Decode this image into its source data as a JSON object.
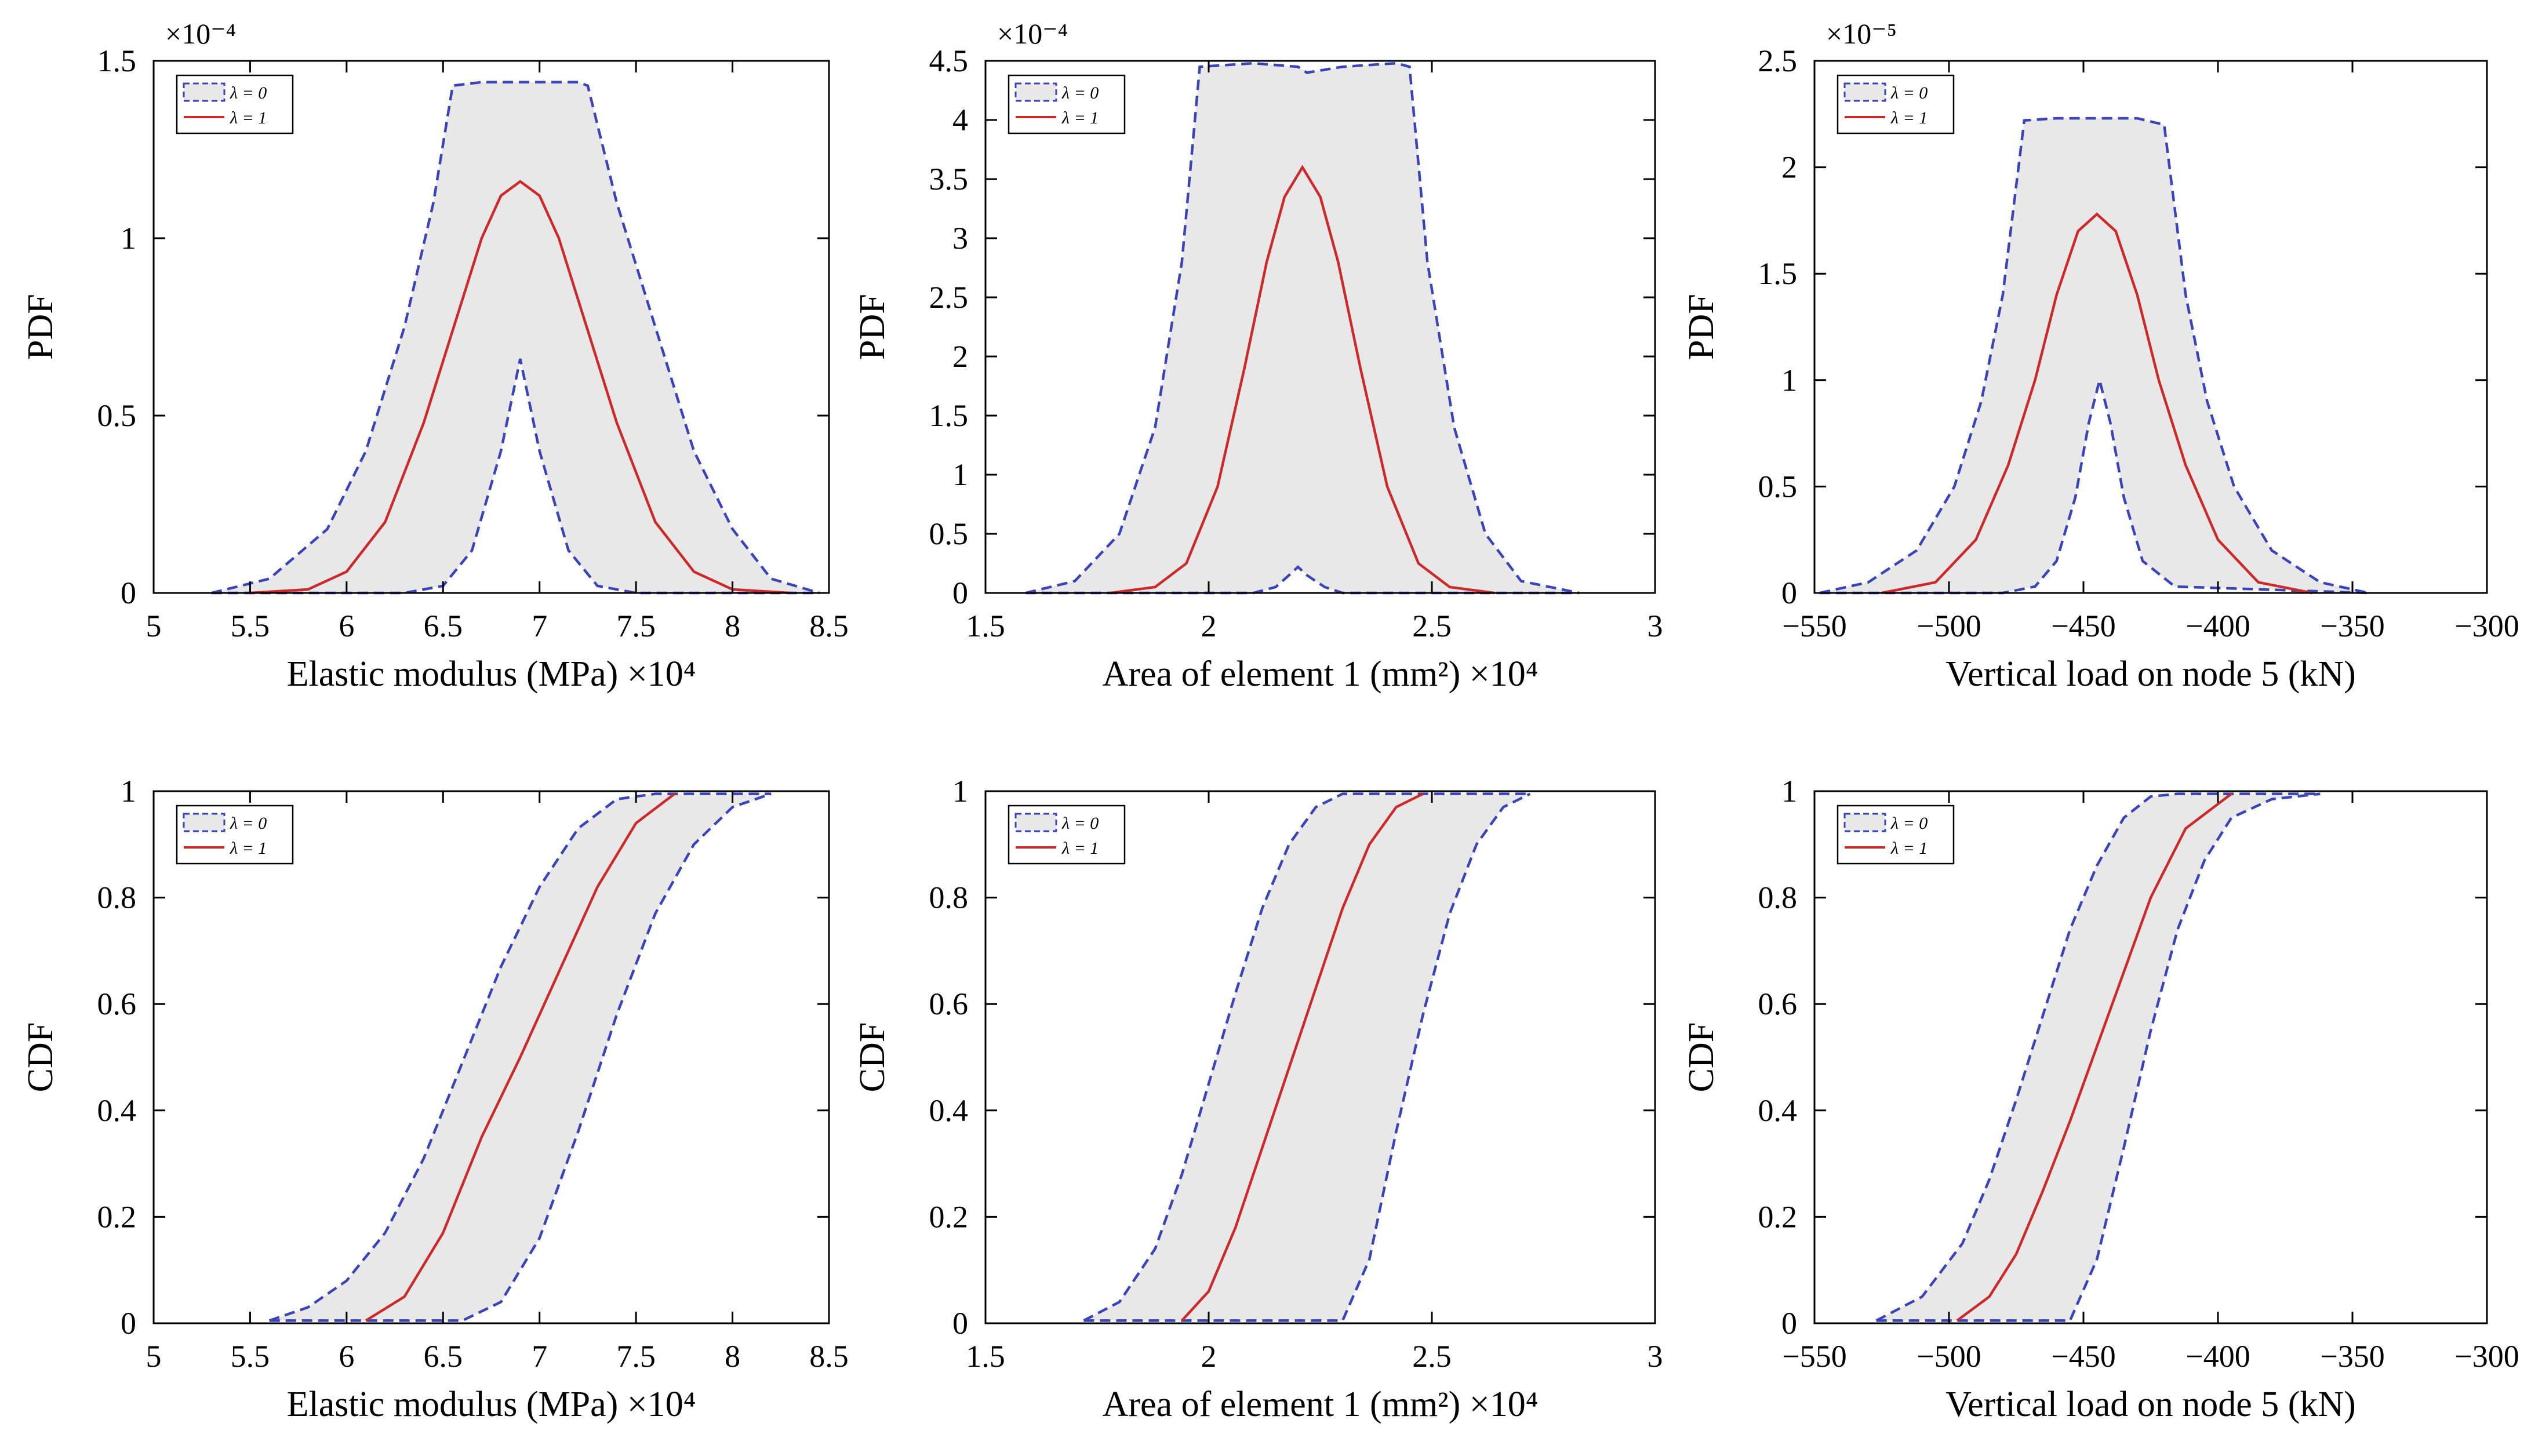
{
  "figure": {
    "legend_labels": [
      "λ = 0",
      "λ = 1"
    ],
    "colors": {
      "lambda0": "#3a44b8",
      "lambda1": "#cc2a2a",
      "band_fill": "#e8e8e8",
      "axes": "#000000"
    }
  },
  "chart_data": [
    {
      "type": "area",
      "title": "",
      "xlabel": "Elastic modulus (MPa) ×10⁴",
      "ylabel": "PDF",
      "y_exponent": "×10⁻⁴",
      "xlim": [
        5,
        8.5
      ],
      "ylim": [
        0,
        1.5
      ],
      "xticks": [
        5,
        5.5,
        6,
        6.5,
        7,
        7.5,
        8,
        8.5
      ],
      "xtick_labels": [
        "5",
        "5.5",
        "6",
        "6.5",
        "7",
        "7.5",
        "8",
        "8.5"
      ],
      "yticks": [
        0,
        0.5,
        1,
        1.5
      ],
      "ytick_labels": [
        "0",
        "0.5",
        "1",
        "1.5"
      ],
      "legend": [
        "λ = 0",
        "λ = 1"
      ],
      "legend_position": "top-left",
      "series": [
        {
          "name": "λ = 0 upper",
          "x": [
            5.3,
            5.6,
            5.9,
            6.1,
            6.3,
            6.45,
            6.55,
            6.7,
            7.0,
            7.2,
            7.25,
            7.4,
            7.6,
            7.8,
            8.0,
            8.2,
            8.45
          ],
          "values": [
            0.0,
            0.04,
            0.18,
            0.4,
            0.75,
            1.1,
            1.43,
            1.44,
            1.44,
            1.44,
            1.43,
            1.1,
            0.75,
            0.4,
            0.18,
            0.04,
            0.0
          ]
        },
        {
          "name": "λ = 0 lower",
          "x": [
            5.3,
            6.0,
            6.3,
            6.5,
            6.65,
            6.8,
            6.9,
            7.0,
            7.15,
            7.3,
            7.5,
            8.45
          ],
          "values": [
            0.0,
            0.0,
            0.0,
            0.02,
            0.12,
            0.4,
            0.66,
            0.4,
            0.12,
            0.02,
            0.0,
            0.0
          ]
        },
        {
          "name": "λ = 1",
          "x": [
            5.5,
            5.8,
            6.0,
            6.2,
            6.4,
            6.55,
            6.7,
            6.8,
            6.9,
            7.0,
            7.1,
            7.25,
            7.4,
            7.6,
            7.8,
            8.0,
            8.3
          ],
          "values": [
            0.0,
            0.01,
            0.06,
            0.2,
            0.48,
            0.74,
            1.0,
            1.12,
            1.16,
            1.12,
            1.0,
            0.74,
            0.48,
            0.2,
            0.06,
            0.01,
            0.0
          ]
        }
      ]
    },
    {
      "type": "area",
      "title": "",
      "xlabel": "Area of element 1 (mm²) ×10⁴",
      "ylabel": "PDF",
      "y_exponent": "×10⁻⁴",
      "xlim": [
        1.5,
        3
      ],
      "ylim": [
        0,
        4.5
      ],
      "xticks": [
        1.5,
        2,
        2.5,
        3
      ],
      "xtick_labels": [
        "1.5",
        "2",
        "2.5",
        "3"
      ],
      "yticks": [
        0,
        0.5,
        1,
        1.5,
        2,
        2.5,
        3,
        3.5,
        4,
        4.5
      ],
      "ytick_labels": [
        "0",
        "0.5",
        "1",
        "1.5",
        "2",
        "2.5",
        "3",
        "3.5",
        "4",
        "4.5"
      ],
      "legend": [
        "λ = 0",
        "λ = 1"
      ],
      "legend_position": "top-left",
      "series": [
        {
          "name": "λ = 0 upper",
          "x": [
            1.59,
            1.7,
            1.8,
            1.88,
            1.94,
            1.98,
            2.1,
            2.2,
            2.22,
            2.3,
            2.42,
            2.45,
            2.49,
            2.55,
            2.62,
            2.7,
            2.83
          ],
          "values": [
            0.0,
            0.1,
            0.5,
            1.4,
            2.8,
            4.45,
            4.48,
            4.45,
            4.4,
            4.45,
            4.48,
            4.45,
            2.8,
            1.4,
            0.5,
            0.1,
            0.0
          ]
        },
        {
          "name": "λ = 0 lower",
          "x": [
            1.59,
            2.1,
            2.15,
            2.18,
            2.2,
            2.22,
            2.26,
            2.3,
            2.83
          ],
          "values": [
            0.0,
            0.0,
            0.05,
            0.15,
            0.22,
            0.15,
            0.05,
            0.0,
            0.0
          ]
        },
        {
          "name": "λ = 1",
          "x": [
            1.78,
            1.88,
            1.95,
            2.02,
            2.08,
            2.13,
            2.17,
            2.21,
            2.25,
            2.29,
            2.34,
            2.4,
            2.47,
            2.54,
            2.64
          ],
          "values": [
            0.0,
            0.05,
            0.25,
            0.9,
            1.9,
            2.8,
            3.35,
            3.6,
            3.35,
            2.8,
            1.9,
            0.9,
            0.25,
            0.05,
            0.0
          ]
        }
      ]
    },
    {
      "type": "area",
      "title": "",
      "xlabel": "Vertical load on node 5 (kN)",
      "ylabel": "PDF",
      "y_exponent": "×10⁻⁵",
      "xlim": [
        -550,
        -300
      ],
      "ylim": [
        0,
        2.5
      ],
      "xticks": [
        -550,
        -500,
        -450,
        -400,
        -350,
        -300
      ],
      "xtick_labels": [
        "−550",
        "−500",
        "−450",
        "−400",
        "−350",
        "−300"
      ],
      "yticks": [
        0,
        0.5,
        1,
        1.5,
        2,
        2.5
      ],
      "ytick_labels": [
        "0",
        "0.5",
        "1",
        "1.5",
        "2",
        "2.5"
      ],
      "legend": [
        "λ = 0",
        "λ = 1"
      ],
      "legend_position": "top-left",
      "series": [
        {
          "name": "λ = 0 upper",
          "x": [
            -548,
            -530,
            -512,
            -498,
            -488,
            -480,
            -472,
            -460,
            -445,
            -430,
            -420,
            -412,
            -404,
            -394,
            -380,
            -362,
            -344
          ],
          "values": [
            0.0,
            0.05,
            0.2,
            0.5,
            0.9,
            1.4,
            2.22,
            2.23,
            2.23,
            2.23,
            2.2,
            1.4,
            0.9,
            0.5,
            0.2,
            0.05,
            0.0
          ]
        },
        {
          "name": "λ = 0 lower",
          "x": [
            -548,
            -480,
            -468,
            -460,
            -453,
            -448,
            -444,
            -440,
            -435,
            -428,
            -416,
            -344
          ],
          "values": [
            0.0,
            0.0,
            0.03,
            0.15,
            0.45,
            0.8,
            1.0,
            0.8,
            0.45,
            0.15,
            0.03,
            0.0
          ]
        },
        {
          "name": "λ = 1",
          "x": [
            -525,
            -505,
            -490,
            -478,
            -468,
            -460,
            -452,
            -445,
            -438,
            -430,
            -422,
            -412,
            -400,
            -385,
            -365
          ],
          "values": [
            0.0,
            0.05,
            0.25,
            0.6,
            1.0,
            1.4,
            1.7,
            1.78,
            1.7,
            1.4,
            1.0,
            0.6,
            0.25,
            0.05,
            0.0
          ]
        }
      ]
    },
    {
      "type": "area",
      "title": "",
      "xlabel": "Elastic modulus (MPa) ×10⁴",
      "ylabel": "CDF",
      "y_exponent": "",
      "xlim": [
        5,
        8.5
      ],
      "ylim": [
        0,
        1
      ],
      "xticks": [
        5,
        5.5,
        6,
        6.5,
        7,
        7.5,
        8,
        8.5
      ],
      "xtick_labels": [
        "5",
        "5.5",
        "6",
        "6.5",
        "7",
        "7.5",
        "8",
        "8.5"
      ],
      "yticks": [
        0,
        0.2,
        0.4,
        0.6,
        0.8,
        1
      ],
      "ytick_labels": [
        "0",
        "0.2",
        "0.4",
        "0.6",
        "0.8",
        "1"
      ],
      "legend": [
        "λ = 0",
        "λ = 1"
      ],
      "legend_position": "top-left",
      "series": [
        {
          "name": "λ = 0 upper",
          "x": [
            5.6,
            5.8,
            6.0,
            6.2,
            6.4,
            6.6,
            6.8,
            7.0,
            7.2,
            7.4,
            7.6,
            8.2
          ],
          "values": [
            0.005,
            0.03,
            0.08,
            0.17,
            0.31,
            0.49,
            0.67,
            0.82,
            0.93,
            0.985,
            0.995,
            0.995
          ]
        },
        {
          "name": "λ = 0 lower",
          "x": [
            5.6,
            6.6,
            6.8,
            7.0,
            7.2,
            7.4,
            7.6,
            7.8,
            8.0,
            8.2
          ],
          "values": [
            0.005,
            0.005,
            0.04,
            0.16,
            0.36,
            0.58,
            0.77,
            0.9,
            0.97,
            0.995
          ]
        },
        {
          "name": "λ = 1",
          "x": [
            6.1,
            6.3,
            6.5,
            6.7,
            6.9,
            7.1,
            7.3,
            7.5,
            7.7
          ],
          "values": [
            0.005,
            0.05,
            0.17,
            0.35,
            0.5,
            0.66,
            0.82,
            0.94,
            0.995
          ]
        }
      ]
    },
    {
      "type": "area",
      "title": "",
      "xlabel": "Area of element 1 (mm²) ×10⁴",
      "ylabel": "CDF",
      "y_exponent": "",
      "xlim": [
        1.5,
        3
      ],
      "ylim": [
        0,
        1
      ],
      "xticks": [
        1.5,
        2,
        2.5,
        3
      ],
      "xtick_labels": [
        "1.5",
        "2",
        "2.5",
        "3"
      ],
      "yticks": [
        0,
        0.2,
        0.4,
        0.6,
        0.8,
        1
      ],
      "ytick_labels": [
        "0",
        "0.2",
        "0.4",
        "0.6",
        "0.8",
        "1"
      ],
      "legend": [
        "λ = 0",
        "λ = 1"
      ],
      "legend_position": "top-left",
      "series": [
        {
          "name": "λ = 0 upper",
          "x": [
            1.72,
            1.8,
            1.88,
            1.94,
            2.0,
            2.06,
            2.12,
            2.18,
            2.24,
            2.3,
            2.36,
            2.72
          ],
          "values": [
            0.005,
            0.04,
            0.14,
            0.28,
            0.45,
            0.62,
            0.78,
            0.9,
            0.97,
            0.995,
            0.995,
            0.995
          ]
        },
        {
          "name": "λ = 0 lower",
          "x": [
            1.72,
            2.3,
            2.36,
            2.42,
            2.48,
            2.54,
            2.6,
            2.66,
            2.72
          ],
          "values": [
            0.005,
            0.005,
            0.12,
            0.36,
            0.58,
            0.77,
            0.9,
            0.97,
            0.995
          ]
        },
        {
          "name": "λ = 1",
          "x": [
            1.94,
            2.0,
            2.06,
            2.12,
            2.18,
            2.24,
            2.3,
            2.36,
            2.42,
            2.48
          ],
          "values": [
            0.005,
            0.06,
            0.18,
            0.33,
            0.48,
            0.63,
            0.78,
            0.9,
            0.97,
            0.995
          ]
        }
      ]
    },
    {
      "type": "area",
      "title": "",
      "xlabel": "Vertical load on node 5 (kN)",
      "ylabel": "CDF",
      "y_exponent": "",
      "xlim": [
        -550,
        -300
      ],
      "ylim": [
        0,
        1
      ],
      "xticks": [
        -550,
        -500,
        -450,
        -400,
        -350,
        -300
      ],
      "xtick_labels": [
        "−550",
        "−500",
        "−450",
        "−400",
        "−350",
        "−300"
      ],
      "yticks": [
        0,
        0.2,
        0.4,
        0.6,
        0.8,
        1
      ],
      "ytick_labels": [
        "0",
        "0.2",
        "0.4",
        "0.6",
        "0.8",
        "1"
      ],
      "legend": [
        "λ = 0",
        "λ = 1"
      ],
      "legend_position": "top-left",
      "series": [
        {
          "name": "λ = 0 upper",
          "x": [
            -527,
            -510,
            -495,
            -485,
            -475,
            -465,
            -455,
            -445,
            -435,
            -425,
            -415,
            -362
          ],
          "values": [
            0.005,
            0.05,
            0.15,
            0.27,
            0.42,
            0.58,
            0.74,
            0.86,
            0.95,
            0.99,
            0.995,
            0.995
          ]
        },
        {
          "name": "λ = 0 lower",
          "x": [
            -527,
            -455,
            -445,
            -435,
            -425,
            -415,
            -405,
            -395,
            -380,
            -362
          ],
          "values": [
            0.005,
            0.005,
            0.12,
            0.33,
            0.55,
            0.74,
            0.87,
            0.95,
            0.985,
            0.995
          ]
        },
        {
          "name": "λ = 1",
          "x": [
            -497,
            -485,
            -475,
            -465,
            -455,
            -445,
            -435,
            -425,
            -412,
            -395
          ],
          "values": [
            0.005,
            0.05,
            0.13,
            0.25,
            0.38,
            0.52,
            0.66,
            0.8,
            0.93,
            0.995
          ]
        }
      ]
    }
  ]
}
